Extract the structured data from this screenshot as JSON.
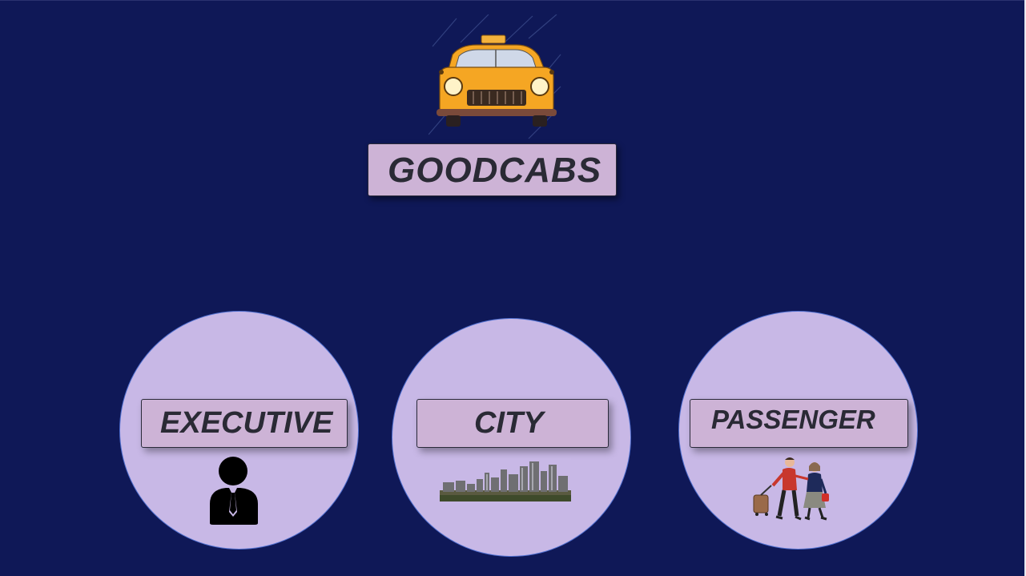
{
  "brand": {
    "title": "GOODCABS"
  },
  "sections": [
    {
      "label": "EXECUTIVE",
      "icon": "person-icon"
    },
    {
      "label": "CITY",
      "icon": "city-skyline-icon"
    },
    {
      "label": "PASSENGER",
      "icon": "travelers-icon"
    }
  ],
  "colors": {
    "background": "#0f1857",
    "circle": "#c8b8e6",
    "circle_border": "#4f6fd0",
    "label_box": "#cdb3d6",
    "text": "#2a2a35",
    "taxi": "#f5a623"
  }
}
